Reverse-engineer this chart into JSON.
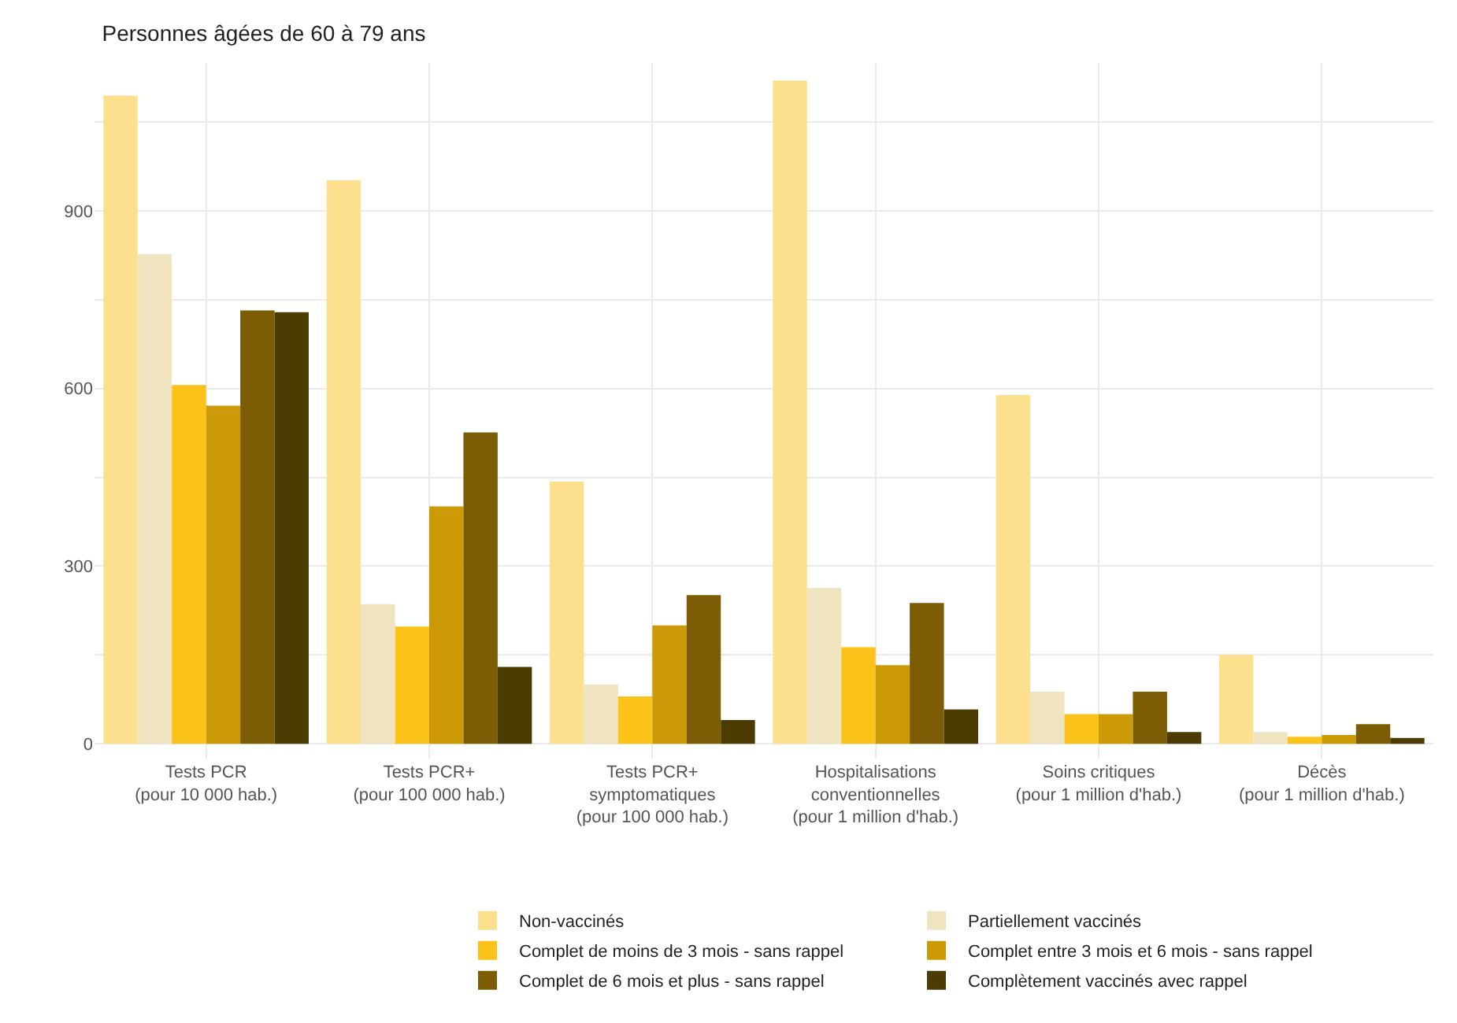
{
  "chart_data": {
    "type": "bar",
    "title": "Personnes âgées de 60 à 79 ans",
    "categories": [
      "Tests PCR\n(pour 10 000 hab.)",
      "Tests PCR+\n(pour 100 000 hab.)",
      "Tests PCR+\nsymptomatiques\n(pour 100 000 hab.)",
      "Hospitalisations\nconventionnelles\n(pour 1 million d'hab.)",
      "Soins critiques\n(pour 1 million d'hab.)",
      "Décès\n(pour 1 million d'hab.)"
    ],
    "series": [
      {
        "name": "Non-vaccinés",
        "color": "#fde08e",
        "values": [
          1095,
          952,
          443,
          1120,
          589,
          150
        ]
      },
      {
        "name": "Partiellement vaccinés",
        "color": "#f0e3c0",
        "values": [
          827,
          236,
          100,
          263,
          88,
          20
        ]
      },
      {
        "name": "Complet de moins de 3 mois - sans rappel",
        "color": "#fbc21a",
        "values": [
          606,
          198,
          80,
          163,
          50,
          12
        ]
      },
      {
        "name": "Complet entre 3 mois et 6 mois - sans rappel",
        "color": "#cc9a06",
        "values": [
          571,
          401,
          200,
          133,
          50,
          15
        ]
      },
      {
        "name": "Complet de 6 mois et plus - sans rappel",
        "color": "#7d5c06",
        "values": [
          732,
          526,
          251,
          238,
          88,
          33
        ]
      },
      {
        "name": "Complètement vaccinés avec rappel",
        "color": "#4d3c02",
        "values": [
          729,
          130,
          40,
          58,
          20,
          10
        ]
      }
    ],
    "ylim": [
      -25,
      1150
    ],
    "yticks": [
      0,
      {
        "value": 150,
        "label": null
      },
      300,
      {
        "value": 450,
        "label": null
      },
      600,
      {
        "value": 750,
        "label": null
      },
      900,
      {
        "value": 1050,
        "label": null
      }
    ],
    "grid": true,
    "legend": "bottom"
  }
}
